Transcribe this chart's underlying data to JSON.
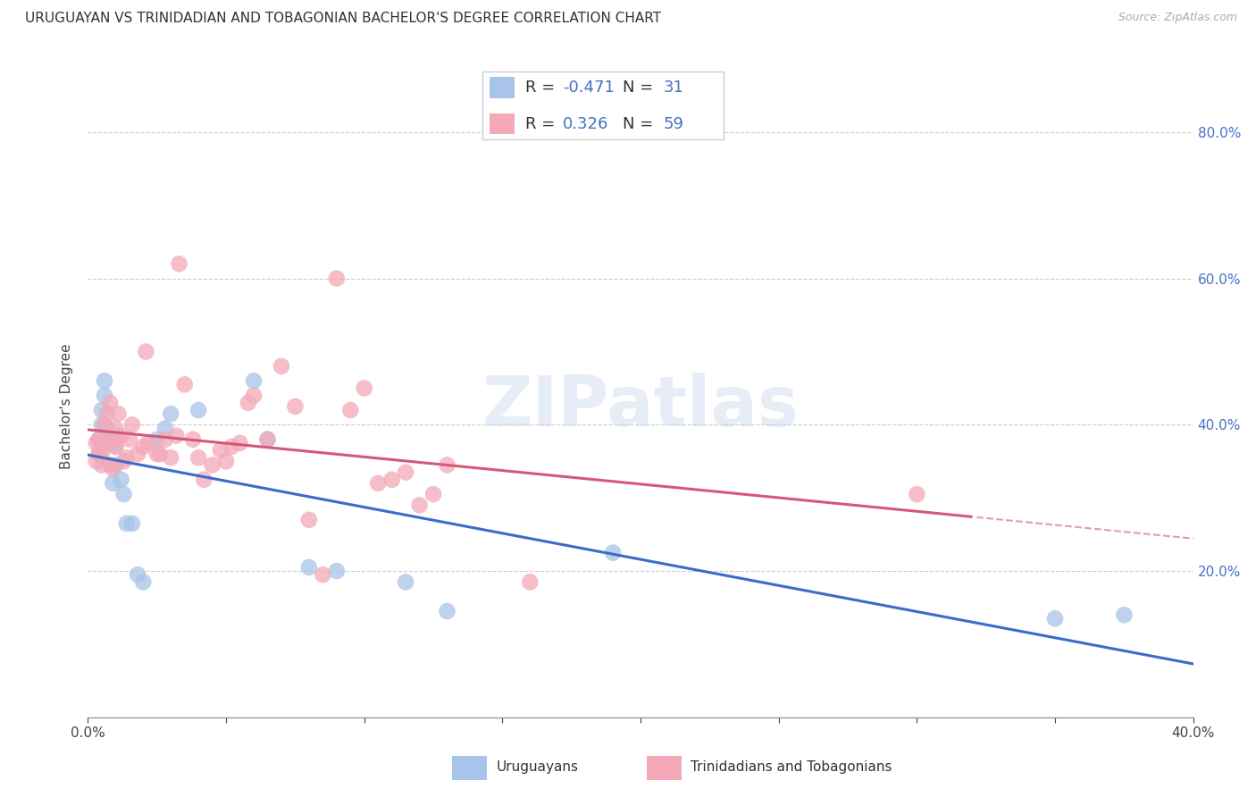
{
  "title": "URUGUAYAN VS TRINIDADIAN AND TOBAGONIAN BACHELOR'S DEGREE CORRELATION CHART",
  "source": "Source: ZipAtlas.com",
  "ylabel": "Bachelor's Degree",
  "watermark": "ZIPatlas",
  "xlim": [
    0.0,
    0.4
  ],
  "ylim": [
    0.0,
    0.85
  ],
  "uruguayan_color": "#a8c4e8",
  "trinidadian_color": "#f4a8b8",
  "uruguayan_line_color": "#3a6cc8",
  "trinidadian_line_color": "#d45878",
  "R_uruguayan": -0.471,
  "N_uruguayan": 31,
  "R_trinidadian": 0.326,
  "N_trinidadian": 59,
  "uruguayan_points_x": [
    0.004,
    0.004,
    0.005,
    0.005,
    0.006,
    0.006,
    0.007,
    0.008,
    0.008,
    0.009,
    0.01,
    0.01,
    0.012,
    0.013,
    0.014,
    0.016,
    0.018,
    0.02,
    0.025,
    0.028,
    0.03,
    0.04,
    0.06,
    0.065,
    0.08,
    0.09,
    0.115,
    0.13,
    0.19,
    0.35,
    0.375
  ],
  "uruguayan_points_y": [
    0.38,
    0.36,
    0.42,
    0.4,
    0.44,
    0.46,
    0.395,
    0.375,
    0.38,
    0.32,
    0.37,
    0.345,
    0.325,
    0.305,
    0.265,
    0.265,
    0.195,
    0.185,
    0.38,
    0.395,
    0.415,
    0.42,
    0.46,
    0.38,
    0.205,
    0.2,
    0.185,
    0.145,
    0.225,
    0.135,
    0.14
  ],
  "trinidadian_points_x": [
    0.003,
    0.003,
    0.004,
    0.004,
    0.005,
    0.005,
    0.005,
    0.006,
    0.006,
    0.007,
    0.008,
    0.008,
    0.009,
    0.01,
    0.01,
    0.01,
    0.011,
    0.012,
    0.013,
    0.014,
    0.015,
    0.016,
    0.018,
    0.02,
    0.021,
    0.022,
    0.025,
    0.026,
    0.028,
    0.03,
    0.032,
    0.033,
    0.035,
    0.038,
    0.04,
    0.042,
    0.045,
    0.048,
    0.05,
    0.052,
    0.055,
    0.058,
    0.06,
    0.065,
    0.07,
    0.075,
    0.08,
    0.085,
    0.09,
    0.095,
    0.1,
    0.105,
    0.11,
    0.115,
    0.12,
    0.125,
    0.13,
    0.16,
    0.3
  ],
  "trinidadian_points_y": [
    0.375,
    0.35,
    0.38,
    0.36,
    0.345,
    0.36,
    0.37,
    0.38,
    0.4,
    0.415,
    0.43,
    0.345,
    0.34,
    0.37,
    0.38,
    0.395,
    0.415,
    0.385,
    0.35,
    0.355,
    0.38,
    0.4,
    0.36,
    0.37,
    0.5,
    0.375,
    0.36,
    0.36,
    0.38,
    0.355,
    0.385,
    0.62,
    0.455,
    0.38,
    0.355,
    0.325,
    0.345,
    0.365,
    0.35,
    0.37,
    0.375,
    0.43,
    0.44,
    0.38,
    0.48,
    0.425,
    0.27,
    0.195,
    0.6,
    0.42,
    0.45,
    0.32,
    0.325,
    0.335,
    0.29,
    0.305,
    0.345,
    0.185,
    0.305
  ],
  "background_color": "#ffffff",
  "grid_color": "#cccccc"
}
